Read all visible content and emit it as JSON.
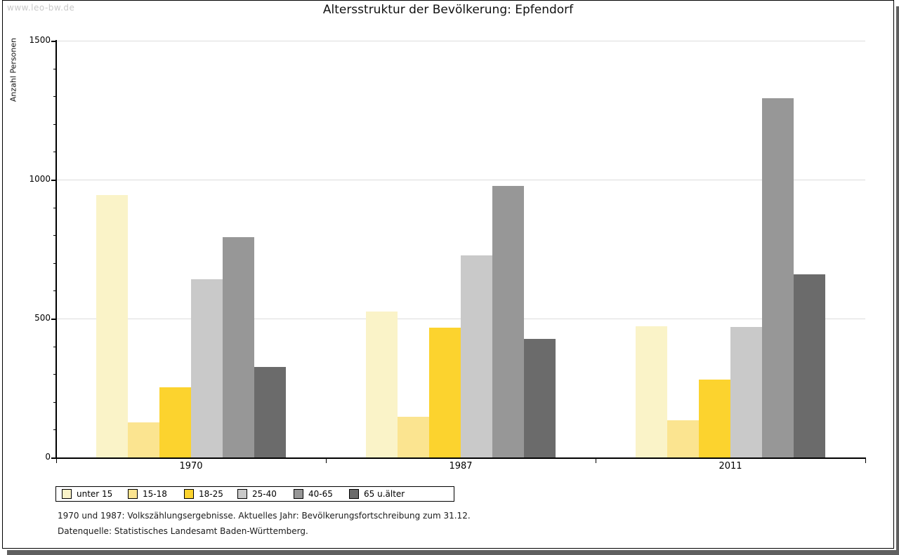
{
  "watermark": "www.leo-bw.de",
  "title": "Altersstruktur der Bevölkerung: Epfendorf",
  "chart_data": {
    "type": "bar",
    "title": "Altersstruktur der Bevölkerung: Epfendorf",
    "xlabel": "",
    "ylabel": "Anzahl Personen",
    "ylim": [
      0,
      1500
    ],
    "yticks": [
      0,
      500,
      1000,
      1500
    ],
    "minor_tick_step": 100,
    "grid": "horizontal",
    "legend_position": "bottom",
    "categories": [
      "1970",
      "1987",
      "2011"
    ],
    "series": [
      {
        "name": "unter 15",
        "color": "#FAF3C8",
        "values": [
          945,
          524,
          472
        ]
      },
      {
        "name": "15-18",
        "color": "#FBE490",
        "values": [
          127,
          147,
          135
        ]
      },
      {
        "name": "18-25",
        "color": "#FCD32E",
        "values": [
          253,
          468,
          280
        ]
      },
      {
        "name": "25-40",
        "color": "#C9C9C9",
        "values": [
          641,
          728,
          470
        ]
      },
      {
        "name": "40-65",
        "color": "#979797",
        "values": [
          793,
          977,
          1293
        ]
      },
      {
        "name": "65 u.älter",
        "color": "#6B6B6B",
        "values": [
          327,
          426,
          660
        ]
      }
    ]
  },
  "footer": {
    "line1": "1970 und 1987: Volkszählungsergebnisse. Aktuelles Jahr: Bevölkerungsfortschreibung zum 31.12.",
    "line2": "Datenquelle: Statistisches Landesamt Baden-Württemberg."
  },
  "colors": {
    "shadow": "#5f5f5f",
    "gridline": "#dcdcdc",
    "watermark": "#c9c9c9"
  }
}
